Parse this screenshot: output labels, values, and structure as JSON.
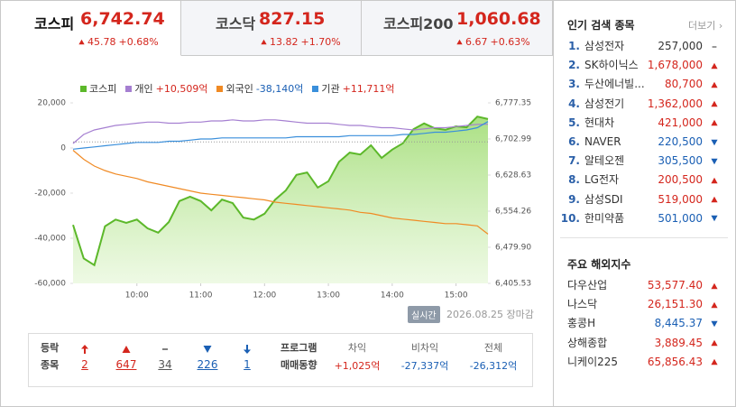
{
  "tabs": [
    {
      "name": "코스피",
      "value": "6,742.74",
      "change": "45.78",
      "rate": "+0.68%",
      "direction": "up",
      "active": true
    },
    {
      "name": "코스닥",
      "value": "827.15",
      "change": "13.82",
      "rate": "+1.70%",
      "direction": "up",
      "active": false
    },
    {
      "name": "코스피200",
      "value": "1,060.68",
      "change": "6.67",
      "rate": "+0.63%",
      "direction": "up",
      "active": false
    }
  ],
  "chart_data": {
    "type": "line",
    "x": [
      "09:00",
      "09:10",
      "09:20",
      "09:30",
      "09:40",
      "09:50",
      "10:00",
      "10:10",
      "10:20",
      "10:30",
      "10:40",
      "10:50",
      "11:00",
      "11:10",
      "11:20",
      "11:30",
      "11:40",
      "11:50",
      "12:00",
      "12:10",
      "12:20",
      "12:30",
      "12:40",
      "12:50",
      "13:00",
      "13:10",
      "13:20",
      "13:30",
      "13:40",
      "13:50",
      "14:00",
      "14:10",
      "14:20",
      "14:30",
      "14:40",
      "14:50",
      "15:00",
      "15:10",
      "15:20",
      "15:30"
    ],
    "xlim": [
      "09:00",
      "15:30"
    ],
    "xticks": [
      "10:00",
      "11:00",
      "12:00",
      "13:00",
      "14:00",
      "15:00"
    ],
    "ylim": [
      -60000,
      20000
    ],
    "yticks": [
      {
        "value": 20000,
        "label": "20,000"
      },
      0,
      {
        "value": -20000,
        "label": "-20,000"
      },
      {
        "value": -40000,
        "label": "-40,000"
      },
      {
        "value": -60000,
        "label": "-60,000"
      }
    ],
    "y2lim": [
      6405.53,
      6777.35
    ],
    "y2ticks": [
      {
        "value": 6777.35,
        "label": "6,777.35"
      },
      {
        "value": 6702.99,
        "label": "6,702.99"
      },
      {
        "value": 6628.63,
        "label": "6,628.63"
      },
      {
        "value": 6554.26,
        "label": "6,554.26"
      },
      {
        "value": 6479.9,
        "label": "6,479.90"
      },
      {
        "value": 6405.53,
        "label": "6,405.53"
      }
    ],
    "y2_reference": 6696.96,
    "series": [
      {
        "name": "코스피",
        "color": "#5cb82a",
        "axis": "y2",
        "fill": true,
        "values": [
          6526,
          6457,
          6443,
          6523,
          6537,
          6530,
          6537,
          6519,
          6510,
          6532,
          6575,
          6584,
          6575,
          6556,
          6578,
          6571,
          6541,
          6537,
          6549,
          6578,
          6597,
          6629,
          6634,
          6603,
          6616,
          6656,
          6675,
          6671,
          6690,
          6664,
          6681,
          6694,
          6723,
          6735,
          6725,
          6722,
          6729,
          6727,
          6749,
          6744
        ]
      },
      {
        "name": "개인",
        "total": "+10,509억",
        "total_color": "#d4261d",
        "color": "#a57fd1",
        "values": [
          2000,
          6000,
          8000,
          9000,
          10000,
          10500,
          11000,
          11500,
          11500,
          11000,
          11000,
          11500,
          11500,
          12000,
          12000,
          12500,
          12000,
          12000,
          12500,
          12500,
          12000,
          11500,
          11000,
          11000,
          11000,
          10500,
          10000,
          10000,
          9500,
          9000,
          9000,
          8500,
          8000,
          8500,
          9000,
          9000,
          9500,
          10000,
          10500,
          10509
        ]
      },
      {
        "name": "외국인",
        "total": "-38,140억",
        "total_color": "#1a5fb4",
        "color": "#f08a24",
        "values": [
          -1000,
          -5000,
          -8000,
          -10000,
          -11500,
          -12500,
          -13500,
          -15000,
          -16000,
          -17000,
          -18000,
          -19000,
          -20000,
          -20500,
          -21000,
          -21500,
          -22000,
          -22500,
          -23000,
          -24000,
          -24500,
          -25000,
          -25500,
          -26000,
          -26500,
          -27000,
          -27500,
          -28500,
          -29000,
          -30000,
          -31000,
          -31500,
          -32000,
          -32500,
          -33000,
          -33500,
          -33500,
          -34000,
          -34500,
          -38140
        ]
      },
      {
        "name": "기관",
        "total": "+11,711억",
        "total_color": "#d4261d",
        "color": "#3a8fdb",
        "values": [
          -500,
          0,
          500,
          1000,
          1500,
          2000,
          2500,
          2500,
          2500,
          3000,
          3000,
          3500,
          4000,
          4000,
          4500,
          4500,
          4500,
          4500,
          4500,
          4500,
          4500,
          5000,
          5000,
          5000,
          5000,
          5000,
          5500,
          5500,
          5500,
          5500,
          5500,
          6000,
          6000,
          6500,
          7000,
          7000,
          7500,
          8000,
          9000,
          11711
        ]
      }
    ]
  },
  "timestamp": {
    "badge": "실시간",
    "date": "2026.08.25",
    "status": "장마감"
  },
  "breadth": {
    "label": [
      "등락",
      "종목"
    ],
    "items": [
      {
        "value": "2",
        "direction": "upper"
      },
      {
        "value": "647",
        "direction": "up"
      },
      {
        "value": "34",
        "direction": "flat"
      },
      {
        "value": "226",
        "direction": "down"
      },
      {
        "value": "1",
        "direction": "lower"
      }
    ]
  },
  "program": {
    "label": [
      "프로그램",
      "매매동향"
    ],
    "columns": [
      {
        "name": "차익",
        "value": "+1,025억",
        "direction": "up"
      },
      {
        "name": "비차익",
        "value": "-27,337억",
        "direction": "down"
      },
      {
        "name": "전체",
        "value": "-26,312억",
        "direction": "down"
      }
    ]
  },
  "popular": {
    "title": "인기 검색 종목",
    "more": "더보기",
    "items": [
      {
        "rank": "1.",
        "name": "삼성전자",
        "price": "257,000",
        "direction": "flat"
      },
      {
        "rank": "2.",
        "name": "SK하이닉스",
        "price": "1,678,000",
        "direction": "up"
      },
      {
        "rank": "3.",
        "name": "두산에너빌...",
        "price": "80,700",
        "direction": "up"
      },
      {
        "rank": "4.",
        "name": "삼성전기",
        "price": "1,362,000",
        "direction": "up"
      },
      {
        "rank": "5.",
        "name": "현대차",
        "price": "421,000",
        "direction": "up"
      },
      {
        "rank": "6.",
        "name": "NAVER",
        "price": "220,500",
        "direction": "down"
      },
      {
        "rank": "7.",
        "name": "알테오젠",
        "price": "305,500",
        "direction": "down"
      },
      {
        "rank": "8.",
        "name": "LG전자",
        "price": "200,500",
        "direction": "up"
      },
      {
        "rank": "9.",
        "name": "삼성SDI",
        "price": "519,000",
        "direction": "up"
      },
      {
        "rank": "10.",
        "name": "한미약품",
        "price": "501,000",
        "direction": "down"
      }
    ]
  },
  "world": {
    "title": "주요 해외지수",
    "items": [
      {
        "name": "다우산업",
        "price": "53,577.40",
        "direction": "up"
      },
      {
        "name": "나스닥",
        "price": "26,151.30",
        "direction": "up"
      },
      {
        "name": "홍콩H",
        "price": "8,445.37",
        "direction": "down"
      },
      {
        "name": "상해종합",
        "price": "3,889.45",
        "direction": "up"
      },
      {
        "name": "니케이225",
        "price": "65,856.43",
        "direction": "up"
      }
    ]
  }
}
